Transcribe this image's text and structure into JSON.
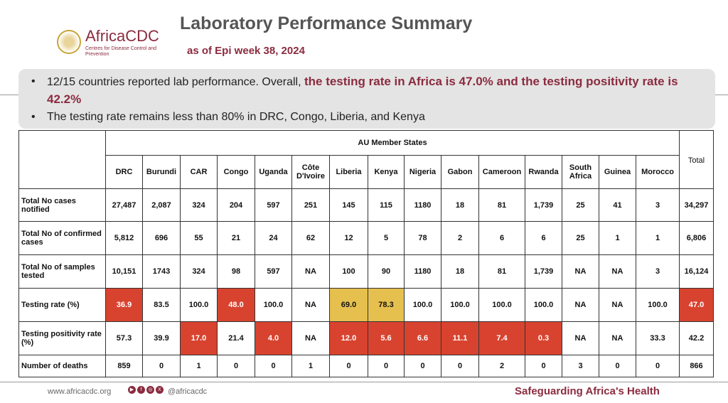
{
  "logo": {
    "name": "AfricaCDC",
    "sub": "Centres for Disease Control and Prevention"
  },
  "title": "Laboratory Performance Summary",
  "subtitle": "as of Epi week 38, 2024",
  "bullets": {
    "b1_pre": "12/15 countries reported lab performance. Overall, ",
    "b1_hl": "the testing rate in Africa is 47.0% and the testing positivity rate is 42.2%",
    "b2": "The testing rate remains less than 80% in DRC, Congo, Liberia, and Kenya"
  },
  "table": {
    "group_header": "AU Member States",
    "total_header": "Total",
    "countries": [
      "DRC",
      "Burundi",
      "CAR",
      "Congo",
      "Uganda",
      "Côte D'Ivoire",
      "Liberia",
      "Kenya",
      "Nigeria",
      "Gabon",
      "Cameroon",
      "Rwanda",
      "South Africa",
      "Guinea",
      "Morocco"
    ],
    "rows": [
      {
        "label": "Total No cases notified",
        "cells": [
          {
            "v": "27,487"
          },
          {
            "v": "2,087"
          },
          {
            "v": "324"
          },
          {
            "v": "204"
          },
          {
            "v": "597"
          },
          {
            "v": "251"
          },
          {
            "v": "145"
          },
          {
            "v": "115"
          },
          {
            "v": "1180"
          },
          {
            "v": "18"
          },
          {
            "v": "81"
          },
          {
            "v": "1,739"
          },
          {
            "v": "25"
          },
          {
            "v": "41"
          },
          {
            "v": "3"
          },
          {
            "v": "34,297"
          }
        ]
      },
      {
        "label": "Total No of confirmed cases",
        "cells": [
          {
            "v": "5,812"
          },
          {
            "v": "696"
          },
          {
            "v": "55"
          },
          {
            "v": "21"
          },
          {
            "v": "24"
          },
          {
            "v": "62"
          },
          {
            "v": "12"
          },
          {
            "v": "5"
          },
          {
            "v": "78"
          },
          {
            "v": "2"
          },
          {
            "v": "6"
          },
          {
            "v": "6"
          },
          {
            "v": "25"
          },
          {
            "v": "1"
          },
          {
            "v": "1"
          },
          {
            "v": "6,806"
          }
        ]
      },
      {
        "label": "Total No of samples tested",
        "cells": [
          {
            "v": "10,151"
          },
          {
            "v": "1743"
          },
          {
            "v": "324"
          },
          {
            "v": "98"
          },
          {
            "v": "597"
          },
          {
            "v": "NA"
          },
          {
            "v": "100"
          },
          {
            "v": "90"
          },
          {
            "v": "1180"
          },
          {
            "v": "18"
          },
          {
            "v": "81"
          },
          {
            "v": "1,739"
          },
          {
            "v": "NA"
          },
          {
            "v": "NA"
          },
          {
            "v": "3"
          },
          {
            "v": "16,124"
          }
        ]
      },
      {
        "label": "Testing rate (%)",
        "cells": [
          {
            "v": "36.9",
            "hl": "red"
          },
          {
            "v": "83.5"
          },
          {
            "v": "100.0"
          },
          {
            "v": "48.0",
            "hl": "red"
          },
          {
            "v": "100.0"
          },
          {
            "v": "NA"
          },
          {
            "v": "69.0",
            "hl": "yel"
          },
          {
            "v": "78.3",
            "hl": "yel"
          },
          {
            "v": "100.0"
          },
          {
            "v": "100.0"
          },
          {
            "v": "100.0"
          },
          {
            "v": "100.0"
          },
          {
            "v": "NA"
          },
          {
            "v": "NA"
          },
          {
            "v": "100.0"
          },
          {
            "v": "47.0",
            "hl": "red"
          }
        ]
      },
      {
        "label": "Testing positivity rate (%)",
        "cells": [
          {
            "v": "57.3"
          },
          {
            "v": "39.9"
          },
          {
            "v": "17.0",
            "hl": "red"
          },
          {
            "v": "21.4"
          },
          {
            "v": "4.0",
            "hl": "red"
          },
          {
            "v": "NA"
          },
          {
            "v": "12.0",
            "hl": "red"
          },
          {
            "v": "5.6",
            "hl": "red"
          },
          {
            "v": "6.6",
            "hl": "red"
          },
          {
            "v": "11.1",
            "hl": "red"
          },
          {
            "v": "7.4",
            "hl": "red"
          },
          {
            "v": "0.3",
            "hl": "red"
          },
          {
            "v": "NA"
          },
          {
            "v": "NA"
          },
          {
            "v": "33.3"
          },
          {
            "v": "42.2"
          }
        ]
      },
      {
        "label": "Number of deaths",
        "cells": [
          {
            "v": "859"
          },
          {
            "v": "0"
          },
          {
            "v": "1"
          },
          {
            "v": "0"
          },
          {
            "v": "0"
          },
          {
            "v": "1"
          },
          {
            "v": "0"
          },
          {
            "v": "0"
          },
          {
            "v": "0"
          },
          {
            "v": "0"
          },
          {
            "v": "2"
          },
          {
            "v": "0"
          },
          {
            "v": "3"
          },
          {
            "v": "0"
          },
          {
            "v": "0"
          },
          {
            "v": "866"
          }
        ]
      }
    ]
  },
  "colors": {
    "red": "#d8432f",
    "yellow": "#e6c04f",
    "brand": "#8b2b3f"
  },
  "footer": {
    "url": "www.africacdc.org",
    "social_icons": [
      "youtube-icon",
      "facebook-icon",
      "instagram-icon",
      "x-icon"
    ],
    "handle": "@africacdc",
    "tagline": "Safeguarding Africa's Health"
  }
}
